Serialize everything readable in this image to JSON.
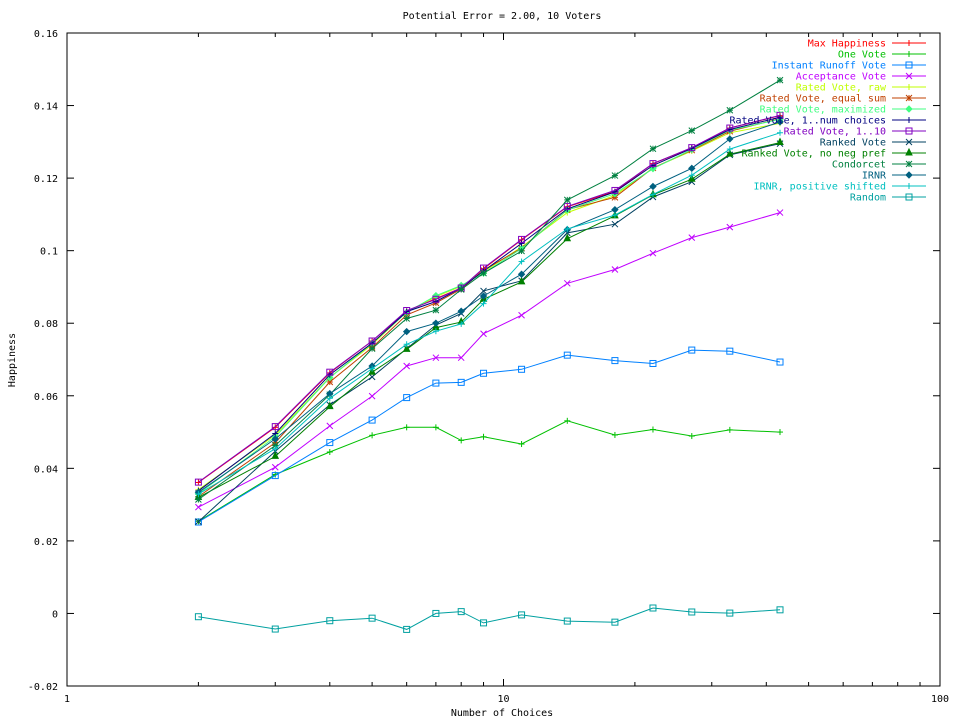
{
  "chart_data": {
    "type": "line",
    "title": "Potential Error = 2.00, 10 Voters",
    "xlabel": "Number of Choices",
    "ylabel": "Happiness",
    "x_scale": "log",
    "xlim": [
      1,
      100
    ],
    "ylim": [
      -0.02,
      0.16
    ],
    "x_ticks": [
      1,
      10,
      100
    ],
    "x_tick_labels": [
      "1",
      "10",
      "100"
    ],
    "y_ticks": [
      -0.02,
      0,
      0.02,
      0.04,
      0.06,
      0.08,
      0.1,
      0.12,
      0.14,
      0.16
    ],
    "y_tick_labels": [
      "-0.02",
      "0",
      "0.02",
      "0.04",
      "0.06",
      "0.08",
      "0.1",
      "0.12",
      "0.14",
      "0.16"
    ],
    "grid": false,
    "legend_position": "top-right",
    "x": [
      2,
      3,
      4,
      5,
      6,
      7,
      8,
      9,
      11,
      14,
      18,
      22,
      27,
      33,
      43
    ],
    "series": [
      {
        "name": "Max Happiness",
        "color": "#ff0000",
        "marker": "plus",
        "values": [
          0.0361,
          0.0513,
          0.0663,
          0.0751,
          0.0833,
          0.0868,
          0.0897,
          0.095,
          0.103,
          0.1121,
          0.1163,
          0.124,
          0.1283,
          0.1338,
          0.1372
        ]
      },
      {
        "name": "One Vote",
        "color": "#00c000",
        "marker": "plus",
        "values": [
          0.0254,
          0.0383,
          0.0445,
          0.0491,
          0.0513,
          0.0513,
          0.0477,
          0.0487,
          0.0467,
          0.0531,
          0.0492,
          0.0507,
          0.0489,
          0.0506,
          0.05
        ]
      },
      {
        "name": "Instant Runoff Vote",
        "color": "#0080ff",
        "marker": "square",
        "values": [
          0.0252,
          0.038,
          0.0471,
          0.0533,
          0.0595,
          0.0635,
          0.0637,
          0.0662,
          0.0673,
          0.0712,
          0.0697,
          0.0689,
          0.0726,
          0.0723,
          0.0693
        ]
      },
      {
        "name": "Acceptance Vote",
        "color": "#c000ff",
        "marker": "x",
        "values": [
          0.0293,
          0.0403,
          0.0517,
          0.0599,
          0.0682,
          0.0705,
          0.0705,
          0.0771,
          0.0822,
          0.091,
          0.0948,
          0.0993,
          0.1036,
          0.1065,
          0.1105
        ]
      },
      {
        "name": "Rated Vote, raw",
        "color": "#c0ff00",
        "marker": "plus",
        "values": [
          0.0341,
          0.0492,
          0.0651,
          0.0741,
          0.0831,
          0.0873,
          0.0902,
          0.0942,
          0.101,
          0.1105,
          0.1152,
          0.1228,
          0.1275,
          0.1325,
          0.1351
        ]
      },
      {
        "name": "Rated Vote, equal sum",
        "color": "#c04000",
        "marker": "star",
        "values": [
          0.0322,
          0.0471,
          0.0638,
          0.0733,
          0.0823,
          0.0856,
          0.0894,
          0.0946,
          0.1007,
          0.1113,
          0.1147,
          0.1228,
          0.1277,
          0.1329,
          0.1364
        ]
      },
      {
        "name": "Rated Vote, maximized",
        "color": "#40ff80",
        "marker": "diamond",
        "values": [
          0.033,
          0.0487,
          0.065,
          0.0745,
          0.083,
          0.0876,
          0.0904,
          0.0938,
          0.1006,
          0.1112,
          0.1157,
          0.1226,
          0.1279,
          0.1332,
          0.1362
        ]
      },
      {
        "name": "Rated Vote, 1..num choices",
        "color": "#000080",
        "marker": "plus",
        "values": [
          0.0338,
          0.0496,
          0.0658,
          0.0745,
          0.0832,
          0.086,
          0.0897,
          0.0944,
          0.102,
          0.1115,
          0.1162,
          0.1235,
          0.1282,
          0.1334,
          0.1368
        ]
      },
      {
        "name": "Rated Vote, 1..10",
        "color": "#8000c0",
        "marker": "square",
        "values": [
          0.0362,
          0.0515,
          0.0665,
          0.0751,
          0.0835,
          0.0866,
          0.0897,
          0.0952,
          0.1031,
          0.1122,
          0.1166,
          0.124,
          0.1284,
          0.1338,
          0.1373
        ]
      },
      {
        "name": "Ranked Vote",
        "color": "#004060",
        "marker": "x",
        "values": [
          0.0253,
          0.0447,
          0.0575,
          0.0652,
          0.073,
          0.0795,
          0.0827,
          0.0889,
          0.0917,
          0.1049,
          0.1073,
          0.1148,
          0.119,
          0.1264,
          0.1295
        ]
      },
      {
        "name": "Ranked Vote, no neg pref",
        "color": "#008000",
        "marker": "triangle",
        "values": [
          0.032,
          0.0433,
          0.057,
          0.0665,
          0.0728,
          0.0788,
          0.0803,
          0.0866,
          0.0914,
          0.1033,
          0.1096,
          0.1154,
          0.1197,
          0.1266,
          0.1298
        ]
      },
      {
        "name": "Condorcet",
        "color": "#008040",
        "marker": "star",
        "values": [
          0.0314,
          0.0463,
          0.0603,
          0.073,
          0.0813,
          0.0836,
          0.0893,
          0.0938,
          0.0999,
          0.114,
          0.1207,
          0.1281,
          0.1331,
          0.1387,
          0.147
        ]
      },
      {
        "name": "IRNR",
        "color": "#006080",
        "marker": "diamond",
        "values": [
          0.0334,
          0.0481,
          0.0606,
          0.0682,
          0.0777,
          0.08,
          0.0833,
          0.0875,
          0.0935,
          0.1058,
          0.1113,
          0.1177,
          0.1227,
          0.1308,
          0.1355
        ]
      },
      {
        "name": "IRNR, positive shifted",
        "color": "#00c0c0",
        "marker": "plus",
        "values": [
          0.0329,
          0.0454,
          0.0593,
          0.0675,
          0.0742,
          0.0778,
          0.0798,
          0.0854,
          0.097,
          0.106,
          0.1098,
          0.1155,
          0.1208,
          0.128,
          0.1325
        ]
      },
      {
        "name": "Random",
        "color": "#00a0a0",
        "marker": "square",
        "values": [
          -0.0009,
          -0.0043,
          -0.002,
          -0.0013,
          -0.0044,
          0.0,
          0.0005,
          -0.0026,
          -0.0004,
          -0.0021,
          -0.0024,
          0.0015,
          0.0004,
          0.0001,
          0.001
        ]
      }
    ]
  }
}
